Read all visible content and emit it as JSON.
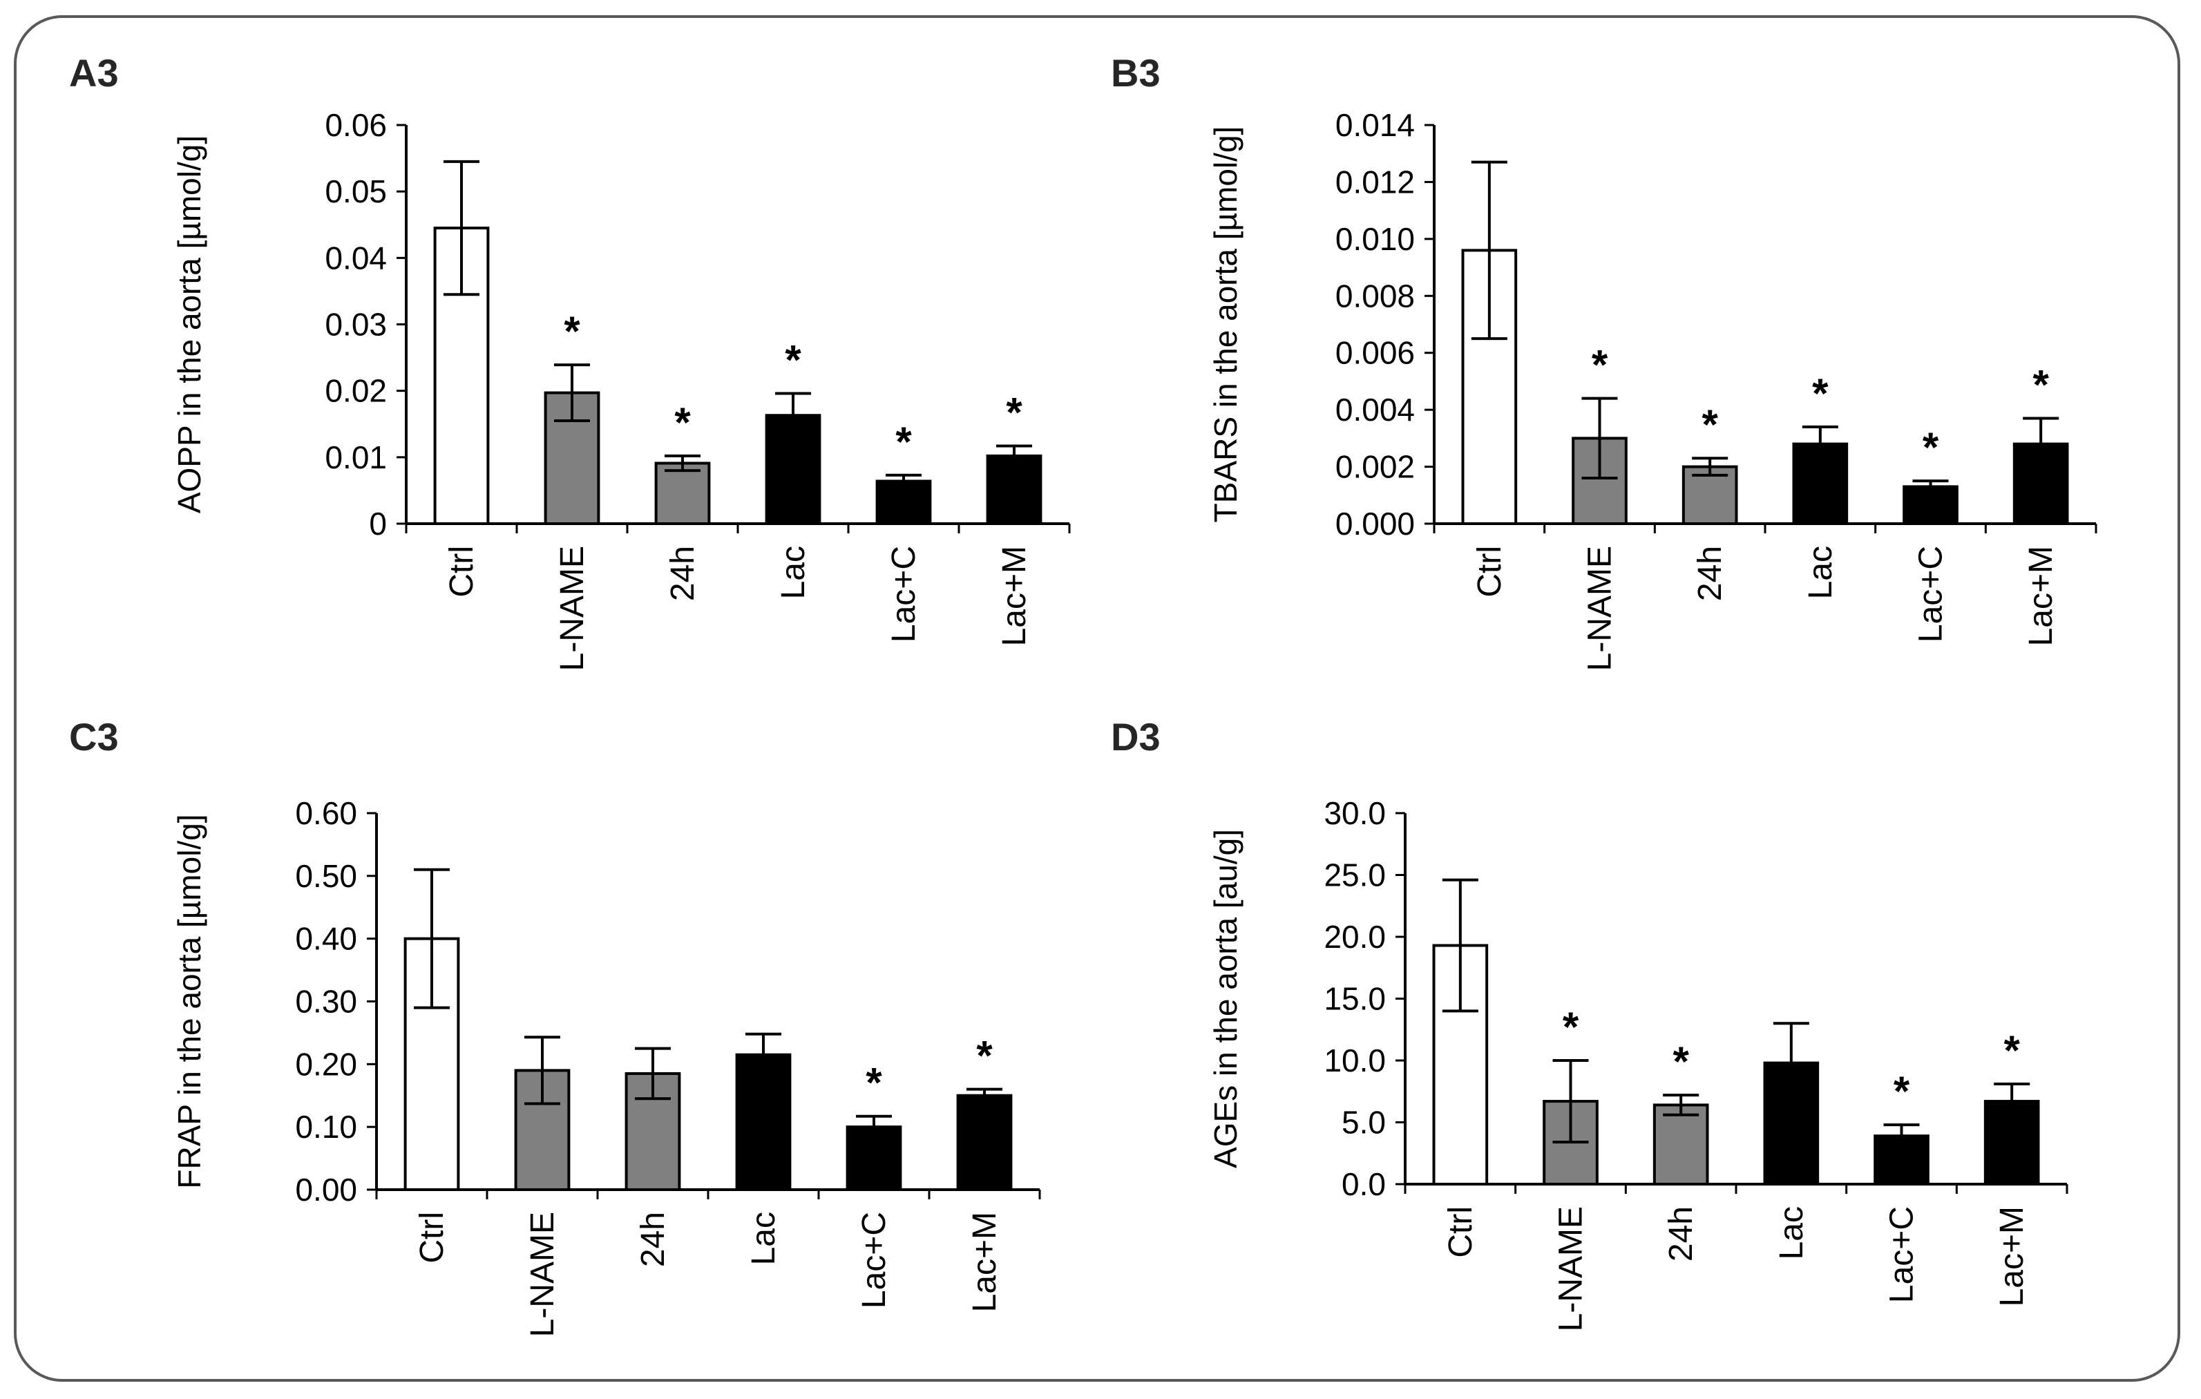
{
  "chart_data": [
    {
      "type": "bar",
      "panel": "A3",
      "ylabel": "AOPP in the aorta [µmol/g]",
      "categories": [
        "Ctrl",
        "L-NAME",
        "24h",
        "Lac",
        "Lac+C",
        "Lac+M"
      ],
      "values": [
        0.0445,
        0.0197,
        0.0091,
        0.0163,
        0.0064,
        0.0102
      ],
      "errors": [
        0.01,
        0.0042,
        0.0011,
        0.0033,
        0.0009,
        0.0015
      ],
      "significant": [
        false,
        true,
        true,
        true,
        true,
        true
      ],
      "colors": [
        "#ffffff",
        "#808080",
        "#808080",
        "#000000",
        "#000000",
        "#000000"
      ],
      "ylim": [
        0,
        0.06
      ],
      "yticks": [
        "0",
        "0.01",
        "0.02",
        "0.03",
        "0.04",
        "0.05",
        "0.06"
      ],
      "sig_marker": "*"
    },
    {
      "type": "bar",
      "panel": "B3",
      "ylabel": "TBARS in the aorta [µmol/g]",
      "categories": [
        "Ctrl",
        "L-NAME",
        "24h",
        "Lac",
        "Lac+C",
        "Lac+M"
      ],
      "values": [
        0.0096,
        0.003,
        0.002,
        0.0028,
        0.0013,
        0.0028
      ],
      "errors": [
        0.0031,
        0.0014,
        0.0003,
        0.0006,
        0.0002,
        0.0009
      ],
      "significant": [
        false,
        true,
        true,
        true,
        true,
        true
      ],
      "colors": [
        "#ffffff",
        "#808080",
        "#808080",
        "#000000",
        "#000000",
        "#000000"
      ],
      "ylim": [
        0,
        0.014
      ],
      "yticks": [
        "0.000",
        "0.002",
        "0.004",
        "0.006",
        "0.008",
        "0.010",
        "0.012",
        "0.014"
      ],
      "sig_marker": "*"
    },
    {
      "type": "bar",
      "panel": "C3",
      "ylabel": "FRAP in the aorta [µmol/g]",
      "categories": [
        "Ctrl",
        "L-NAME",
        "24h",
        "Lac",
        "Lac+C",
        "Lac+M"
      ],
      "values": [
        0.4,
        0.19,
        0.185,
        0.215,
        0.1,
        0.15
      ],
      "errors": [
        0.11,
        0.053,
        0.04,
        0.033,
        0.017,
        0.01
      ],
      "significant": [
        false,
        false,
        false,
        false,
        true,
        true
      ],
      "colors": [
        "#ffffff",
        "#808080",
        "#808080",
        "#000000",
        "#000000",
        "#000000"
      ],
      "ylim": [
        0,
        0.6
      ],
      "yticks": [
        "0.00",
        "0.10",
        "0.20",
        "0.30",
        "0.40",
        "0.50",
        "0.60"
      ],
      "sig_marker": "*"
    },
    {
      "type": "bar",
      "panel": "D3",
      "ylabel": "AGEs in the aorta [au/g]",
      "categories": [
        "Ctrl",
        "L-NAME",
        "24h",
        "Lac",
        "Lac+C",
        "Lac+M"
      ],
      "values": [
        19.3,
        6.7,
        6.4,
        9.8,
        3.9,
        6.7
      ],
      "errors": [
        5.3,
        3.3,
        0.8,
        3.2,
        0.9,
        1.4
      ],
      "significant": [
        false,
        true,
        true,
        false,
        true,
        true
      ],
      "colors": [
        "#ffffff",
        "#808080",
        "#808080",
        "#000000",
        "#000000",
        "#000000"
      ],
      "ylim": [
        0,
        30
      ],
      "yticks": [
        "0.0",
        "5.0",
        "10.0",
        "15.0",
        "20.0",
        "25.0",
        "30.0"
      ],
      "sig_marker": "*"
    }
  ]
}
